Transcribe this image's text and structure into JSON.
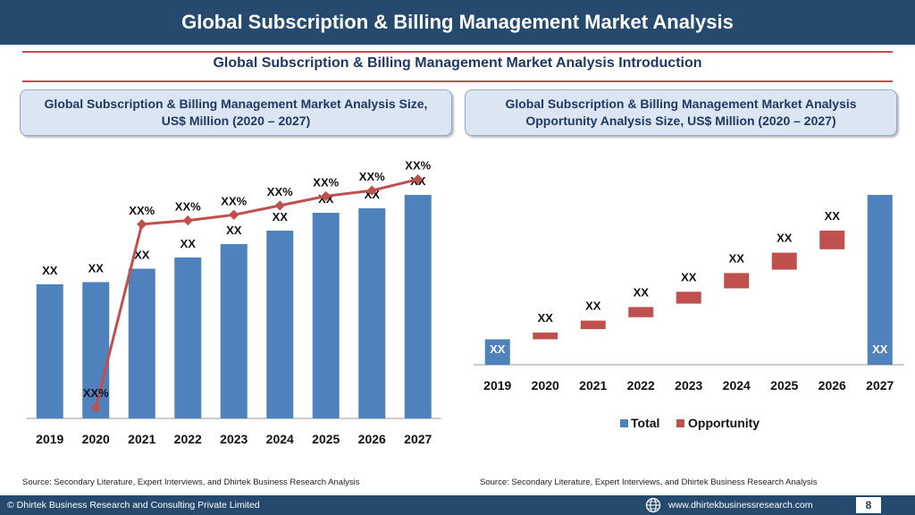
{
  "header": {
    "title": "Global Subscription & Billing Management Market Analysis"
  },
  "subtitle": "Global Subscription & Billing Management Market Analysis  Introduction",
  "left_panel": {
    "heading_line1": "Global Subscription & Billing Management Market Analysis  Size,",
    "heading_line2": "US$ Million (2020 – 2027)",
    "source": "Source: Secondary Literature, Expert Interviews, and Dhirtek Business Research Analysis"
  },
  "right_panel": {
    "heading_line1": "Global Subscription & Billing Management Market Analysis",
    "heading_line2": "Opportunity Analysis Size, US$ Million (2020 – 2027)",
    "source": "Source: Secondary Literature, Expert Interviews, and Dhirtek Business Research Analysis"
  },
  "footer": {
    "copyright": "© Dhirtek Business Research and Consulting Private Limited",
    "website": "www.dhirtekbusinessresearch.com",
    "page": "8",
    "icon": "globe-icon"
  },
  "colors": {
    "bar": "#4f81bd",
    "line": "#c0504d",
    "opportunity": "#c0504d",
    "header": "#264a6e"
  },
  "chart_data": [
    {
      "type": "bar",
      "categories": [
        "2019",
        "2020",
        "2021",
        "2022",
        "2023",
        "2024",
        "2025",
        "2026",
        "2027"
      ],
      "values": [
        60,
        61,
        67,
        72,
        78,
        84,
        92,
        94,
        100
      ],
      "value_labels": [
        "XX",
        "XX",
        "XX",
        "XX",
        "XX",
        "XX",
        "XX",
        "XX",
        "XX"
      ],
      "ylim": [
        0,
        100
      ],
      "line_series": {
        "values": [
          null,
          -8,
          90,
          92,
          95,
          100,
          105,
          108,
          114
        ],
        "labels": [
          null,
          "XX%",
          "XX%",
          "XX%",
          "XX%",
          "XX%",
          "XX%",
          "XX%",
          "XX%"
        ],
        "ylim": [
          -10,
          120
        ]
      },
      "grid": false
    },
    {
      "type": "bar",
      "categories": [
        "2019",
        "2020",
        "2021",
        "2022",
        "2023",
        "2024",
        "2025",
        "2026",
        "2027"
      ],
      "series": [
        {
          "name": "Total",
          "values": [
            15,
            null,
            null,
            null,
            null,
            null,
            null,
            null,
            100
          ]
        },
        {
          "name": "Opportunity",
          "base": [
            null,
            15,
            21,
            28,
            36,
            45,
            56,
            68,
            null
          ],
          "values": [
            null,
            4,
            5,
            6,
            7,
            9,
            10,
            11,
            null
          ]
        }
      ],
      "value_labels": [
        "XX",
        "XX",
        "XX",
        "XX",
        "XX",
        "XX",
        "XX",
        "XX",
        "XX"
      ],
      "ylim": [
        0,
        100
      ],
      "legend": "bottom",
      "grid": false
    }
  ]
}
